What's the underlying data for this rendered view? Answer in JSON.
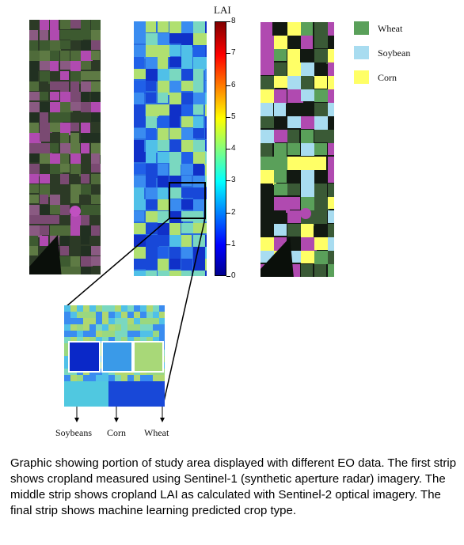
{
  "colorbar": {
    "title": "LAI",
    "ticks": [
      "0",
      "1",
      "2",
      "3",
      "4",
      "5",
      "6",
      "7",
      "8"
    ],
    "range": [
      0,
      8
    ]
  },
  "legend": [
    {
      "label": "Wheat",
      "color": "#5aa05a"
    },
    {
      "label": "Soybean",
      "color": "#a8dcf0"
    },
    {
      "label": "Corn",
      "color": "#ffff66"
    }
  ],
  "inset_labels": [
    "Soybeans",
    "Corn",
    "Wheat"
  ],
  "caption": "Graphic showing portion of study area displayed with different EO data. The first strip shows cropland measured using Sentinel-1 (synthetic aperture radar) imagery. The middle strip shows cropland LAI as calculated with Sentinel-2 optical imagery. The final strip shows machine learning predicted crop type.",
  "colors": {
    "radar": [
      "#2c3a26",
      "#3d5a30",
      "#5e7a44",
      "#7a4a72",
      "#b04ab0",
      "#213021",
      "#4f6b3a",
      "#8a5a82"
    ],
    "lai": [
      "#1030c8",
      "#2060e8",
      "#3a8cf0",
      "#50c0e8",
      "#7ad8c0",
      "#b0e070",
      "#1848d8"
    ],
    "crop": [
      "#5aa05a",
      "#a8dcf0",
      "#ffff66",
      "#121912",
      "#3a5a36",
      "#b04ab0"
    ]
  }
}
